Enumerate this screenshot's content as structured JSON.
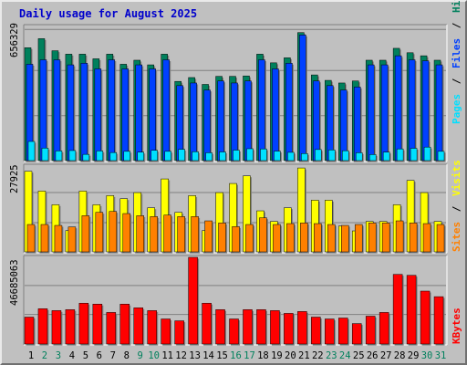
{
  "title": "Daily usage for August 2025",
  "colors": {
    "background": "#c0c0c0",
    "plot_background": "#c0c0c0",
    "title": "#0000cc",
    "hits": "#00805c",
    "files": "#0040ff",
    "pages": "#00e0ff",
    "visits": "#ffff00",
    "sites": "#ff8000",
    "kbytes": "#ff0000",
    "weekday_label": "#000000",
    "weekend_label": "#00805c"
  },
  "panels": {
    "top": {
      "max_label": "656329",
      "legend": [
        "Pages",
        "/",
        "Files",
        "/",
        "Hits"
      ]
    },
    "middle": {
      "max_label": "27925",
      "legend": [
        "Sites",
        "/",
        "Visits"
      ]
    },
    "bottom": {
      "max_label": "46685063",
      "legend": [
        "KBytes"
      ]
    }
  },
  "chart_data": {
    "type": "bar",
    "title": "Daily usage for August 2025",
    "categories": [
      "1",
      "2",
      "3",
      "4",
      "5",
      "6",
      "7",
      "8",
      "9",
      "10",
      "11",
      "12",
      "13",
      "14",
      "15",
      "16",
      "17",
      "18",
      "19",
      "20",
      "21",
      "22",
      "23",
      "24",
      "25",
      "26",
      "27",
      "28",
      "29",
      "30",
      "31"
    ],
    "weekend_days": [
      "2",
      "3",
      "9",
      "10",
      "16",
      "17",
      "23",
      "24",
      "30",
      "31"
    ],
    "panels": [
      {
        "name": "hits-files-pages",
        "ymax": 656329,
        "series": [
          {
            "name": "Hits",
            "values": [
              560000,
              605000,
              545000,
              528000,
              528000,
              505000,
              528000,
              478000,
              498000,
              475000,
              528000,
              393000,
              412000,
              378000,
              418000,
              418000,
              420000,
              528000,
              485000,
              510000,
              635000,
              425000,
              398000,
              385000,
              395000,
              498000,
              498000,
              557000,
              535000,
              520000,
              498000
            ]
          },
          {
            "name": "Files",
            "values": [
              478000,
              500000,
              500000,
              475000,
              483000,
              455000,
              500000,
              455000,
              475000,
              455000,
              500000,
              372000,
              385000,
              350000,
              395000,
              385000,
              395000,
              500000,
              455000,
              483000,
              623000,
              395000,
              372000,
              350000,
              365000,
              475000,
              475000,
              520000,
              500000,
              495000,
              475000
            ]
          },
          {
            "name": "Pages",
            "values": [
              95000,
              62000,
              48000,
              50000,
              31000,
              48000,
              40000,
              46000,
              42000,
              51000,
              46000,
              56000,
              44000,
              39000,
              43000,
              52000,
              59000,
              58000,
              47000,
              41000,
              35000,
              55000,
              53000,
              49000,
              39000,
              30000,
              42000,
              58000,
              61000,
              67000,
              46000
            ]
          }
        ]
      },
      {
        "name": "visits-sites",
        "ymax": 27925,
        "series": [
          {
            "name": "Visits",
            "values": [
              26500,
              20000,
              15500,
              7000,
              20000,
              15500,
              18500,
              17500,
              19500,
              14500,
              24000,
              13000,
              18500,
              7000,
              19500,
              22500,
              25000,
              13500,
              10000,
              14500,
              27600,
              17000,
              17000,
              8500,
              6900,
              10000,
              10000,
              15500,
              23500,
              19500,
              10000
            ]
          },
          {
            "name": "Sites",
            "values": [
              9000,
              9000,
              8700,
              8200,
              11900,
              13000,
              13300,
              12600,
              11900,
              11600,
              12100,
              11600,
              11600,
              10200,
              9500,
              8300,
              9000,
              11200,
              9000,
              9300,
              9500,
              9300,
              9000,
              8700,
              9000,
              9500,
              9500,
              10200,
              9500,
              9300,
              9000
            ]
          }
        ]
      },
      {
        "name": "kbytes",
        "ymax": 46685063,
        "series": [
          {
            "name": "KBytes",
            "values": [
              14500000,
              19000000,
              18000000,
              18500000,
              22000000,
              21500000,
              17000000,
              21500000,
              19500000,
              18000000,
              13500000,
              12500000,
              46685063,
              22000000,
              18500000,
              13500000,
              18500000,
              18500000,
              18000000,
              16500000,
              17500000,
              14500000,
              13500000,
              14000000,
              11000000,
              15000000,
              17000000,
              37500000,
              37000000,
              28500000,
              25500000
            ]
          }
        ]
      }
    ]
  }
}
